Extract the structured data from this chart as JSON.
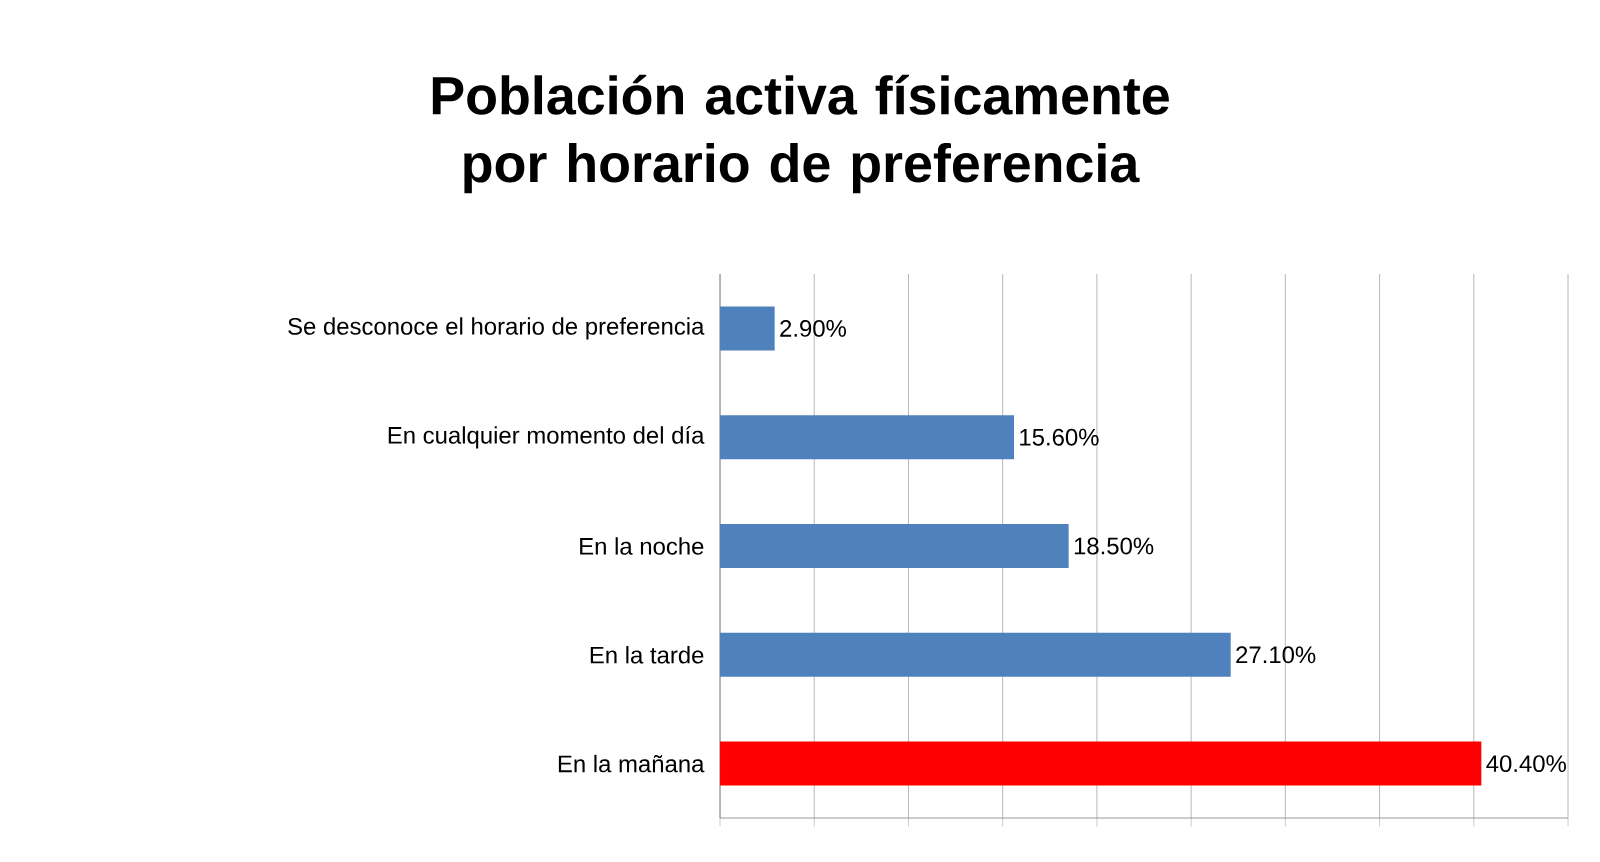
{
  "chart_data": {
    "type": "bar",
    "orientation": "horizontal",
    "title": "Población activa físicamente por horario de preferencia",
    "categories": [
      "Se desconoce el horario de preferencia",
      "En cualquier momento del día",
      "En la noche",
      "En la tarde",
      "En la mañana"
    ],
    "values": [
      2.9,
      15.6,
      18.5,
      27.1,
      40.4
    ],
    "value_labels": [
      "2.90%",
      "15.60%",
      "18.50%",
      "27.10%",
      "40.40%"
    ],
    "colors": [
      "#4f81bd",
      "#4f81bd",
      "#4f81bd",
      "#4f81bd",
      "#ff0000"
    ],
    "xlim": [
      0,
      45
    ],
    "xticks": [
      {
        "value": 0,
        "label": null
      },
      {
        "value": 5,
        "label": null
      },
      {
        "value": 10,
        "label": null
      },
      {
        "value": 15,
        "label": null
      },
      {
        "value": 20,
        "label": null
      },
      {
        "value": 25,
        "label": null
      },
      {
        "value": 30,
        "label": null
      },
      {
        "value": 35,
        "label": null
      },
      {
        "value": 40,
        "label": null
      },
      {
        "value": 45,
        "label": null
      }
    ],
    "grid": "x",
    "tick_labels": "y"
  }
}
